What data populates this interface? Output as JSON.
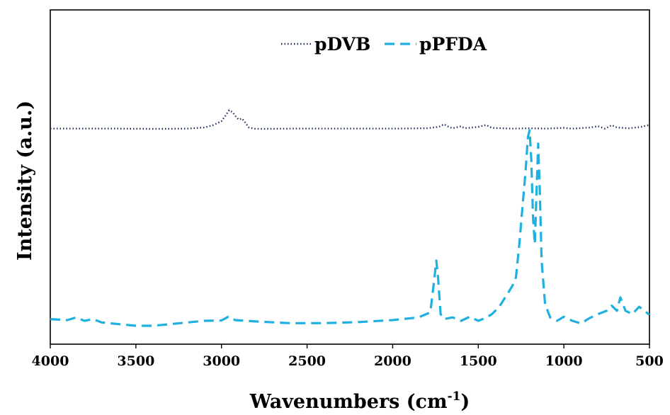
{
  "chart_data": {
    "type": "line",
    "title": "",
    "xlabel": "Wavenumbers (cm",
    "xlabel_sup": "-1",
    "xlabel_close": ")",
    "ylabel": "Intensity (a.u.)",
    "xlim": [
      4000,
      500
    ],
    "x_reversed": true,
    "ylim": [
      0,
      1
    ],
    "y_ticks_shown": false,
    "grid": false,
    "legend_position": "top-center",
    "x_ticks": [
      "4000",
      "3500",
      "3000",
      "2500",
      "2000",
      "1500",
      "1000",
      "500"
    ],
    "x_tick_values": [
      4000,
      3500,
      3000,
      2500,
      2000,
      1500,
      1000,
      500
    ],
    "series": [
      {
        "name": "pDVB",
        "color": "#1f2d5c",
        "dash": "dotted",
        "points": [
          [
            4000,
            0.645
          ],
          [
            3800,
            0.645
          ],
          [
            3600,
            0.645
          ],
          [
            3400,
            0.644
          ],
          [
            3200,
            0.645
          ],
          [
            3100,
            0.648
          ],
          [
            3050,
            0.655
          ],
          [
            3000,
            0.667
          ],
          [
            2975,
            0.685
          ],
          [
            2955,
            0.7
          ],
          [
            2935,
            0.694
          ],
          [
            2915,
            0.68
          ],
          [
            2900,
            0.672
          ],
          [
            2880,
            0.675
          ],
          [
            2860,
            0.662
          ],
          [
            2840,
            0.648
          ],
          [
            2800,
            0.644
          ],
          [
            2600,
            0.645
          ],
          [
            2400,
            0.645
          ],
          [
            2200,
            0.645
          ],
          [
            2000,
            0.645
          ],
          [
            1800,
            0.646
          ],
          [
            1730,
            0.65
          ],
          [
            1700,
            0.658
          ],
          [
            1680,
            0.652
          ],
          [
            1650,
            0.646
          ],
          [
            1600,
            0.652
          ],
          [
            1580,
            0.646
          ],
          [
            1500,
            0.65
          ],
          [
            1455,
            0.656
          ],
          [
            1420,
            0.647
          ],
          [
            1300,
            0.645
          ],
          [
            1200,
            0.646
          ],
          [
            1100,
            0.645
          ],
          [
            1000,
            0.647
          ],
          [
            950,
            0.645
          ],
          [
            850,
            0.648
          ],
          [
            800,
            0.652
          ],
          [
            760,
            0.645
          ],
          [
            720,
            0.655
          ],
          [
            690,
            0.648
          ],
          [
            620,
            0.646
          ],
          [
            550,
            0.65
          ],
          [
            500,
            0.656
          ]
        ]
      },
      {
        "name": "pPFDA",
        "color": "#1fb0e0",
        "dash": "dashed",
        "points": [
          [
            4000,
            0.075
          ],
          [
            3900,
            0.072
          ],
          [
            3850,
            0.08
          ],
          [
            3800,
            0.07
          ],
          [
            3750,
            0.075
          ],
          [
            3700,
            0.065
          ],
          [
            3600,
            0.06
          ],
          [
            3500,
            0.055
          ],
          [
            3400,
            0.055
          ],
          [
            3300,
            0.06
          ],
          [
            3200,
            0.065
          ],
          [
            3100,
            0.07
          ],
          [
            3000,
            0.071
          ],
          [
            2960,
            0.082
          ],
          [
            2920,
            0.072
          ],
          [
            2800,
            0.068
          ],
          [
            2600,
            0.063
          ],
          [
            2400,
            0.063
          ],
          [
            2200,
            0.066
          ],
          [
            2000,
            0.072
          ],
          [
            1850,
            0.08
          ],
          [
            1780,
            0.095
          ],
          [
            1760,
            0.18
          ],
          [
            1745,
            0.25
          ],
          [
            1735,
            0.2
          ],
          [
            1720,
            0.09
          ],
          [
            1700,
            0.075
          ],
          [
            1650,
            0.08
          ],
          [
            1600,
            0.07
          ],
          [
            1550,
            0.082
          ],
          [
            1500,
            0.07
          ],
          [
            1450,
            0.08
          ],
          [
            1420,
            0.09
          ],
          [
            1380,
            0.11
          ],
          [
            1330,
            0.15
          ],
          [
            1300,
            0.175
          ],
          [
            1280,
            0.2
          ],
          [
            1260,
            0.3
          ],
          [
            1240,
            0.42
          ],
          [
            1225,
            0.51
          ],
          [
            1210,
            0.62
          ],
          [
            1200,
            0.64
          ],
          [
            1190,
            0.55
          ],
          [
            1180,
            0.38
          ],
          [
            1170,
            0.3
          ],
          [
            1160,
            0.45
          ],
          [
            1150,
            0.6
          ],
          [
            1140,
            0.45
          ],
          [
            1130,
            0.25
          ],
          [
            1110,
            0.12
          ],
          [
            1080,
            0.08
          ],
          [
            1040,
            0.07
          ],
          [
            1000,
            0.082
          ],
          [
            950,
            0.07
          ],
          [
            900,
            0.062
          ],
          [
            850,
            0.078
          ],
          [
            800,
            0.09
          ],
          [
            750,
            0.1
          ],
          [
            720,
            0.115
          ],
          [
            690,
            0.1
          ],
          [
            670,
            0.14
          ],
          [
            640,
            0.1
          ],
          [
            600,
            0.09
          ],
          [
            560,
            0.112
          ],
          [
            530,
            0.1
          ],
          [
            500,
            0.088
          ]
        ]
      }
    ]
  }
}
